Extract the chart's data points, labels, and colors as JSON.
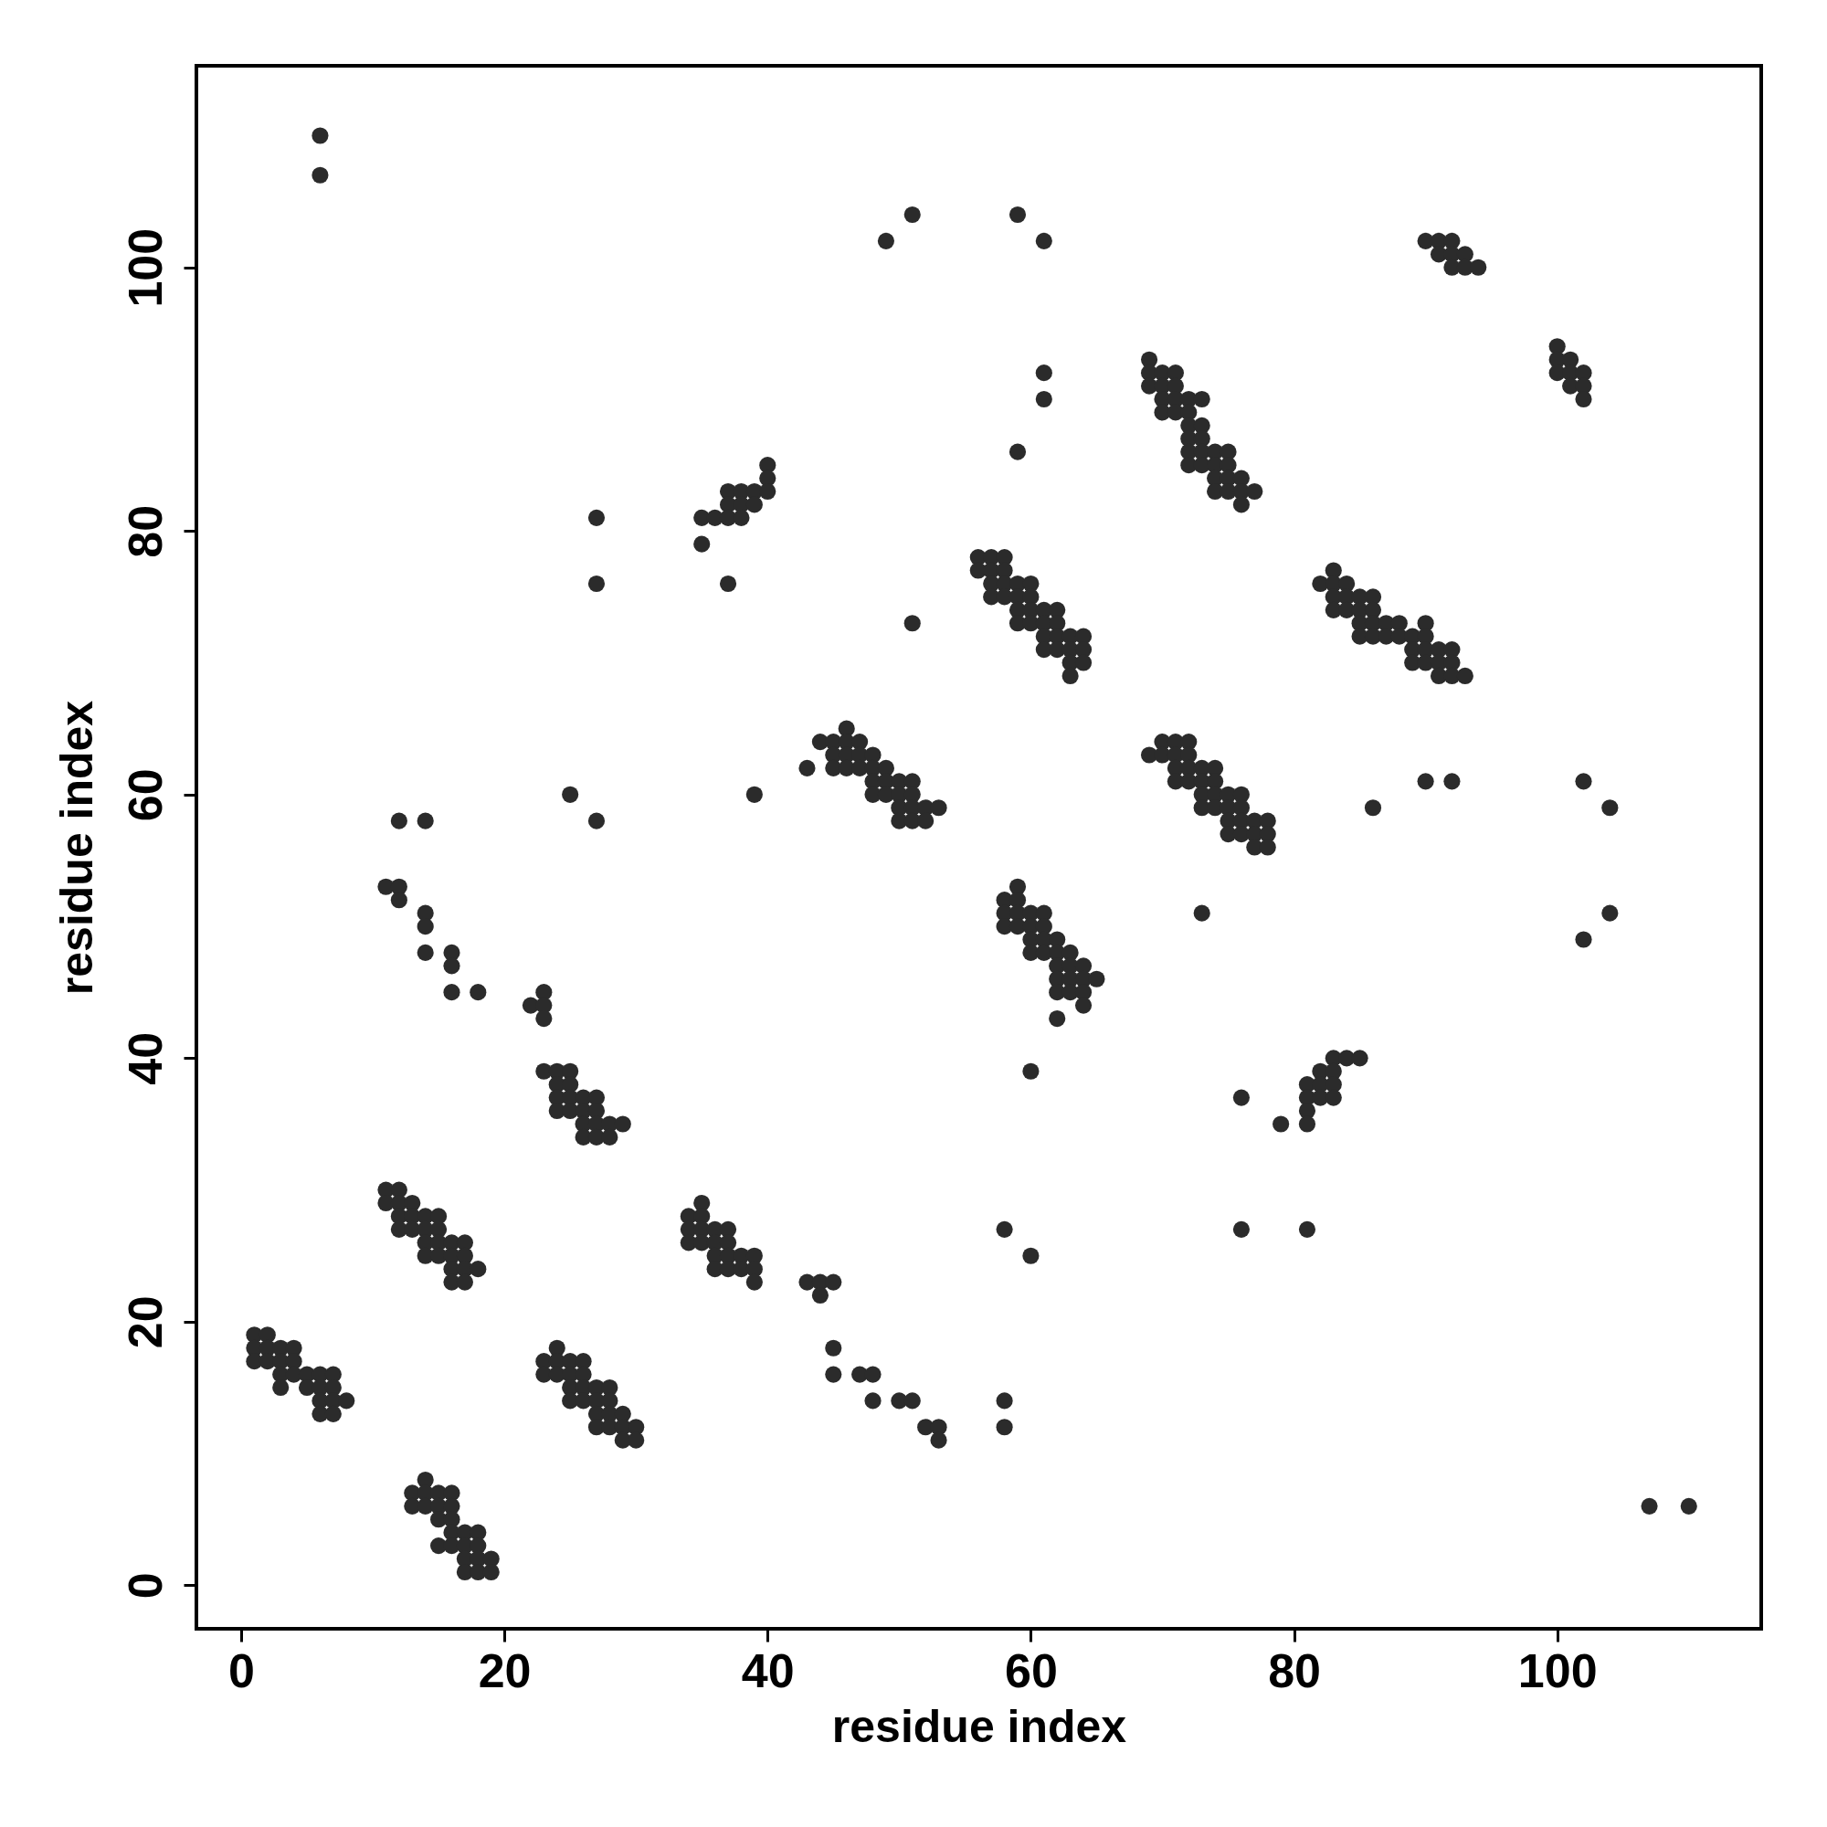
{
  "chart_data": {
    "type": "scatter",
    "xlabel": "residue index",
    "ylabel": "residue index",
    "xlim": [
      -3.4,
      115.5
    ],
    "ylim": [
      -3.3,
      115.3
    ],
    "xticks": [
      0,
      20,
      40,
      60,
      80,
      100
    ],
    "yticks": [
      0,
      20,
      40,
      60,
      80,
      100
    ],
    "marker": "circle",
    "series": [
      {
        "color": "#2b2b2b",
        "x": [
          1,
          2,
          1,
          2,
          3,
          4,
          1,
          2,
          3,
          4,
          3,
          4,
          5,
          6,
          7,
          3,
          5,
          6,
          7,
          6,
          7,
          8,
          6,
          7,
          11,
          12,
          11,
          12,
          13,
          12,
          13,
          14,
          15,
          12,
          13,
          14,
          15,
          14,
          15,
          16,
          17,
          14,
          15,
          16,
          17,
          16,
          17,
          18,
          16,
          17,
          14,
          13,
          14,
          15,
          16,
          13,
          14,
          15,
          16,
          15,
          16,
          16,
          17,
          18,
          15,
          16,
          17,
          18,
          17,
          18,
          19,
          17,
          18,
          19,
          24,
          23,
          24,
          25,
          26,
          23,
          24,
          25,
          26,
          25,
          26,
          27,
          28,
          25,
          26,
          27,
          28,
          27,
          28,
          29,
          27,
          28,
          29,
          30,
          29,
          30,
          35,
          34,
          35,
          34,
          35,
          36,
          37,
          34,
          35,
          36,
          37,
          36,
          37,
          38,
          39,
          36,
          37,
          38,
          39,
          39,
          43,
          44,
          45,
          44,
          45,
          45,
          47,
          48,
          48,
          50,
          51,
          52,
          53,
          53,
          58,
          58,
          58,
          60,
          76,
          81,
          107,
          110,
          23,
          24,
          25,
          24,
          25,
          24,
          25,
          26,
          27,
          24,
          25,
          26,
          27,
          26,
          27,
          28,
          29,
          26,
          27,
          28,
          12,
          14,
          25,
          27,
          39,
          11,
          12,
          12,
          14,
          14,
          14,
          16,
          16,
          16,
          18,
          23,
          22,
          23,
          23,
          6,
          6,
          51,
          49,
          59,
          61,
          61,
          61,
          59,
          27,
          27,
          35,
          37,
          51,
          40,
          40,
          37,
          38,
          39,
          40,
          37,
          38,
          39,
          35,
          36,
          37,
          38,
          69,
          69,
          70,
          71,
          69,
          70,
          71,
          70,
          71,
          72,
          73,
          70,
          71,
          72,
          72,
          73,
          72,
          73,
          72,
          73,
          74,
          75,
          72,
          73,
          74,
          75,
          74,
          75,
          76,
          74,
          75,
          76,
          77,
          76,
          100,
          100,
          101,
          100,
          101,
          102,
          101,
          102,
          102,
          83,
          82,
          83,
          84,
          83,
          84,
          85,
          86,
          83,
          84,
          85,
          86,
          85,
          86,
          87,
          88,
          90,
          85,
          86,
          87,
          88,
          89,
          90,
          89,
          90,
          91,
          92,
          89,
          90,
          91,
          92,
          91,
          92,
          93,
          70,
          71,
          72,
          69,
          70,
          71,
          72,
          71,
          72,
          73,
          74,
          71,
          72,
          73,
          74,
          73,
          74,
          75,
          76,
          73,
          74,
          75,
          76,
          75,
          76,
          77,
          78,
          75,
          76,
          77,
          78,
          77,
          78,
          90,
          92,
          86,
          102,
          104,
          73,
          104,
          102,
          76,
          60,
          83,
          84,
          85,
          82,
          83,
          81,
          82,
          83,
          81,
          82,
          83,
          81,
          79,
          81,
          43,
          46,
          44,
          45,
          46,
          47,
          45,
          46,
          47,
          48,
          45,
          46,
          47,
          48,
          49,
          48,
          49,
          50,
          51,
          48,
          49,
          50,
          51,
          50,
          51,
          52,
          53,
          50,
          51,
          52,
          59,
          58,
          59,
          58,
          59,
          60,
          61,
          58,
          59,
          60,
          61,
          60,
          61,
          62,
          60,
          61,
          62,
          63,
          62,
          63,
          64,
          62,
          63,
          64,
          65,
          62,
          63,
          64,
          64,
          62,
          56,
          57,
          58,
          56,
          57,
          58,
          57,
          58,
          59,
          60,
          57,
          58,
          59,
          60,
          59,
          60,
          61,
          62,
          59,
          60,
          61,
          62,
          61,
          62,
          63,
          64,
          61,
          62,
          63,
          64,
          63,
          64,
          63,
          90,
          91,
          92,
          91,
          92,
          93,
          92,
          93,
          94
        ],
        "values": [
          19,
          19,
          18,
          18,
          18,
          18,
          17,
          17,
          17,
          17,
          16,
          16,
          16,
          16,
          16,
          15,
          15,
          15,
          15,
          14,
          14,
          14,
          13,
          13,
          30,
          30,
          29,
          29,
          29,
          28,
          28,
          28,
          28,
          27,
          27,
          27,
          27,
          26,
          26,
          26,
          26,
          25,
          25,
          25,
          25,
          24,
          24,
          24,
          23,
          23,
          8,
          7,
          7,
          7,
          7,
          6,
          6,
          6,
          6,
          5,
          5,
          4,
          4,
          4,
          3,
          3,
          3,
          3,
          2,
          2,
          2,
          1,
          1,
          1,
          18,
          17,
          17,
          17,
          17,
          16,
          16,
          16,
          16,
          15,
          15,
          15,
          15,
          14,
          14,
          14,
          14,
          13,
          13,
          13,
          12,
          12,
          12,
          12,
          11,
          11,
          29,
          28,
          28,
          27,
          27,
          27,
          27,
          26,
          26,
          26,
          26,
          25,
          25,
          25,
          25,
          24,
          24,
          24,
          24,
          23,
          23,
          23,
          23,
          22,
          18,
          16,
          16,
          16,
          14,
          14,
          14,
          12,
          12,
          11,
          14,
          12,
          27,
          25,
          27,
          27,
          6,
          6,
          39,
          39,
          39,
          38,
          38,
          37,
          37,
          37,
          37,
          36,
          36,
          36,
          36,
          35,
          35,
          35,
          35,
          34,
          34,
          34,
          58,
          58,
          60,
          58,
          60,
          53,
          53,
          52,
          51,
          50,
          48,
          48,
          47,
          45,
          45,
          45,
          44,
          44,
          43,
          110,
          107,
          104,
          102,
          104,
          102,
          92,
          90,
          86,
          81,
          76,
          79,
          76,
          73,
          85,
          84,
          83,
          83,
          83,
          83,
          82,
          82,
          82,
          81,
          81,
          81,
          81,
          93,
          92,
          92,
          92,
          91,
          91,
          91,
          90,
          90,
          90,
          90,
          89,
          89,
          89,
          88,
          88,
          87,
          87,
          86,
          86,
          86,
          86,
          85,
          85,
          85,
          85,
          84,
          84,
          84,
          83,
          83,
          83,
          83,
          82,
          94,
          93,
          93,
          92,
          92,
          92,
          91,
          91,
          90,
          77,
          76,
          76,
          76,
          75,
          75,
          75,
          75,
          74,
          74,
          74,
          74,
          73,
          73,
          73,
          73,
          73,
          72,
          72,
          72,
          72,
          72,
          72,
          71,
          71,
          71,
          71,
          70,
          70,
          70,
          70,
          69,
          69,
          69,
          64,
          64,
          64,
          63,
          63,
          63,
          63,
          62,
          62,
          62,
          62,
          61,
          61,
          61,
          61,
          60,
          60,
          60,
          60,
          59,
          59,
          59,
          59,
          58,
          58,
          58,
          58,
          57,
          57,
          57,
          57,
          56,
          56,
          61,
          61,
          59,
          61,
          59,
          51,
          51,
          49,
          37,
          39,
          40,
          40,
          40,
          39,
          39,
          38,
          38,
          38,
          37,
          37,
          37,
          36,
          35,
          35,
          62,
          65,
          64,
          64,
          64,
          64,
          63,
          63,
          63,
          63,
          62,
          62,
          62,
          62,
          62,
          61,
          61,
          61,
          61,
          60,
          60,
          60,
          60,
          59,
          59,
          59,
          59,
          58,
          58,
          58,
          53,
          52,
          52,
          51,
          51,
          51,
          51,
          50,
          50,
          50,
          50,
          49,
          49,
          49,
          48,
          48,
          48,
          48,
          47,
          47,
          47,
          46,
          46,
          46,
          46,
          45,
          45,
          45,
          44,
          43,
          78,
          78,
          78,
          77,
          77,
          77,
          76,
          76,
          76,
          76,
          75,
          75,
          75,
          75,
          74,
          74,
          74,
          74,
          73,
          73,
          73,
          73,
          72,
          72,
          72,
          72,
          71,
          71,
          71,
          71,
          70,
          70,
          69,
          102,
          102,
          102,
          101,
          101,
          101,
          100,
          100,
          100
        ]
      }
    ]
  }
}
